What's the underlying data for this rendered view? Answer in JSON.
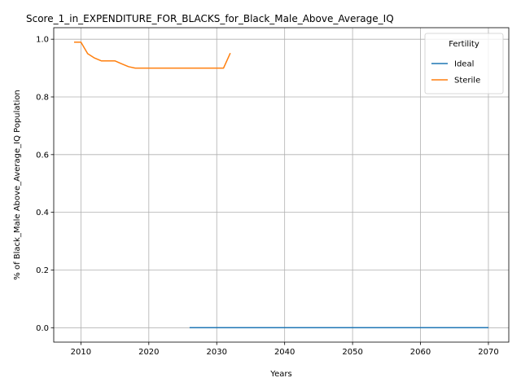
{
  "chart_data": {
    "type": "line",
    "title": "Score_1_in_EXPENDITURE_FOR_BLACKS_for_Black_Male_Above_Average_IQ",
    "xlabel": "Years",
    "ylabel": "% of Black_Male Above_Average_IQ Population",
    "xlim": [
      2006,
      2073
    ],
    "ylim": [
      -0.05,
      1.04
    ],
    "xticks": [
      2010,
      2020,
      2030,
      2040,
      2050,
      2060,
      2070
    ],
    "yticks": [
      0.0,
      0.2,
      0.4,
      0.6,
      0.8,
      1.0
    ],
    "xtick_labels": [
      "2010",
      "2020",
      "2030",
      "2040",
      "2050",
      "2060",
      "2070"
    ],
    "ytick_labels": [
      "0.0",
      "0.2",
      "0.4",
      "0.6",
      "0.8",
      "1.0"
    ],
    "grid": true,
    "legend": {
      "title": "Fertility",
      "position": "top-right"
    },
    "series": [
      {
        "name": "Ideal",
        "color": "#1f77b4",
        "x": [
          2026,
          2030,
          2040,
          2050,
          2060,
          2070
        ],
        "y": [
          0.0,
          0.0,
          0.0,
          0.0,
          0.0,
          0.0
        ]
      },
      {
        "name": "Sterile",
        "color": "#ff7f0e",
        "x": [
          2009,
          2010,
          2011,
          2012,
          2013,
          2014,
          2015,
          2016,
          2017,
          2018,
          2019,
          2020,
          2025,
          2030,
          2031,
          2032
        ],
        "y": [
          0.99,
          0.99,
          0.95,
          0.935,
          0.925,
          0.925,
          0.925,
          0.915,
          0.905,
          0.9,
          0.9,
          0.9,
          0.9,
          0.9,
          0.9,
          0.952
        ]
      }
    ]
  }
}
